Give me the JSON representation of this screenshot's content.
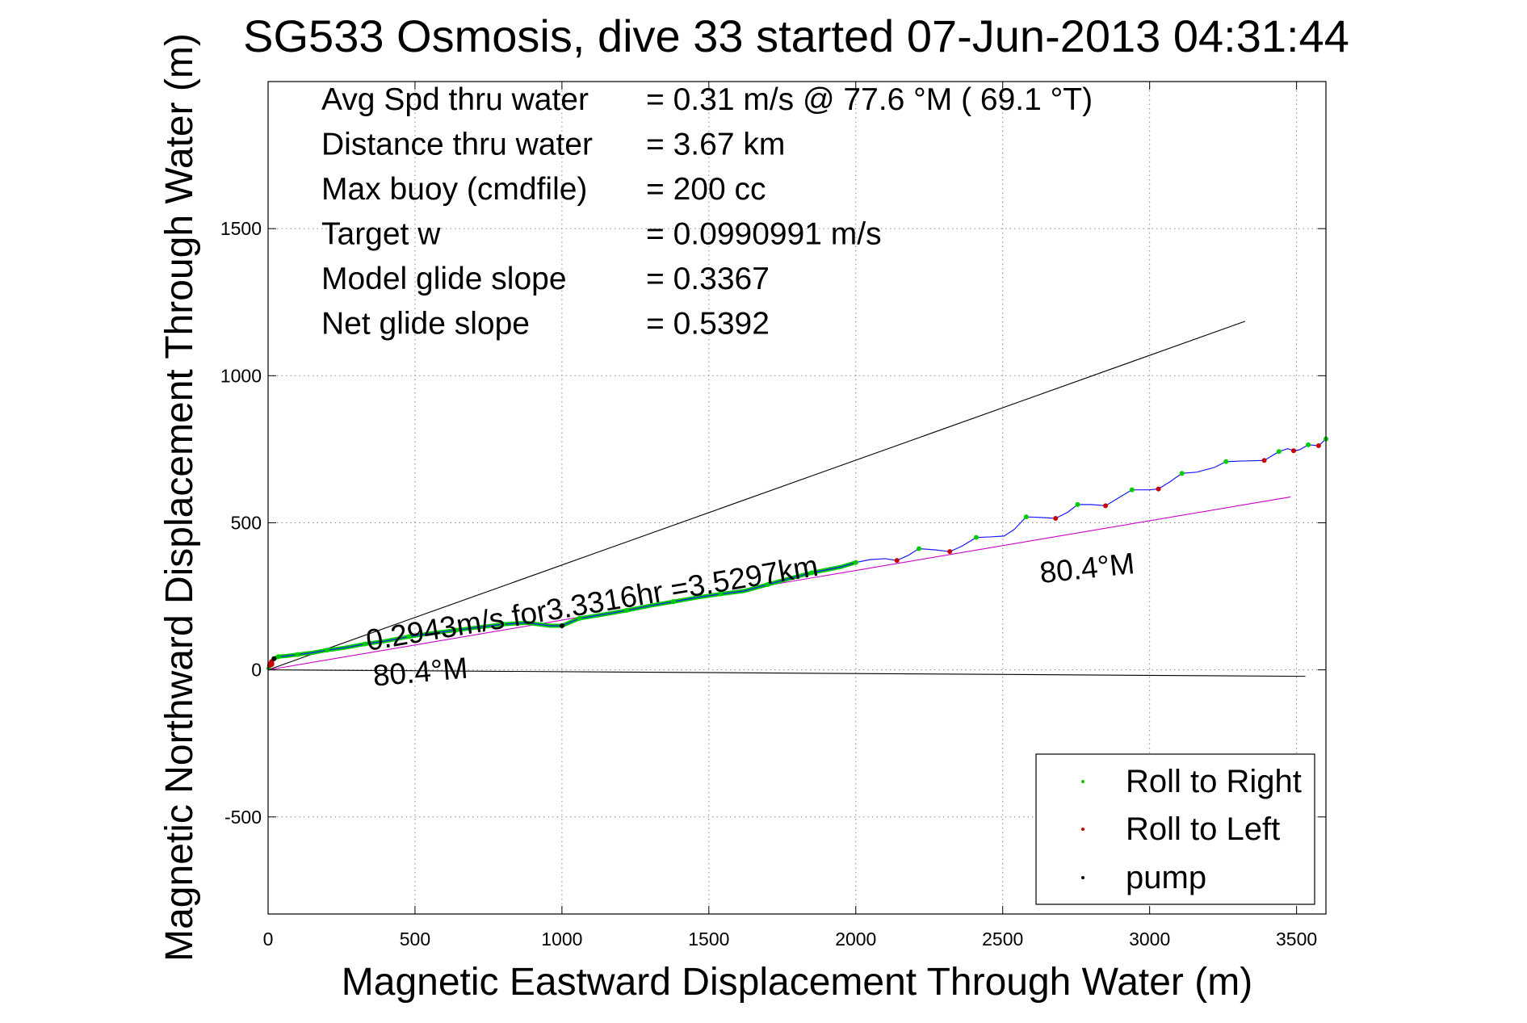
{
  "chart_data": {
    "type": "line",
    "title": "SG533 Osmosis, dive 33 started 07-Jun-2013 04:31:44",
    "xlabel": "Magnetic Eastward Displacement Through Water (m)",
    "ylabel": "Magnetic Northward Displacement Through Water (m)",
    "xlim": [
      0,
      3600
    ],
    "ylim": [
      -830,
      2000
    ],
    "xticks": [
      0,
      500,
      1000,
      1500,
      2000,
      2500,
      3000,
      3500
    ],
    "xtick_labels": [
      "0",
      "500",
      "1000",
      "1500",
      "2000",
      "2500",
      "3000",
      "3500"
    ],
    "yticks": [
      -500,
      0,
      500,
      1000,
      1500
    ],
    "ytick_labels": [
      "-500",
      "0",
      "500",
      "1000",
      "1500"
    ],
    "grid": true,
    "legend_position": "bottom-right",
    "info": [
      {
        "label": "Avg Spd thru water",
        "value": "=  0.31 m/s @  77.6 °M ( 69.1 °T)"
      },
      {
        "label": "Distance thru water",
        "value": "=  3.67 km"
      },
      {
        "label": "Max buoy (cmdfile)",
        "value": "= 200 cc"
      },
      {
        "label": "Target w",
        "value": "= 0.0990991 m/s"
      },
      {
        "label": "Model glide slope",
        "value": "= 0.3367"
      },
      {
        "label": "Net glide slope",
        "value": "= 0.5392"
      }
    ],
    "annotations": [
      {
        "text": "0.2943m/s for3.3316hr =3.5297km",
        "x": 340,
        "y": 65,
        "rotation_deg": -9.5
      },
      {
        "text": "80.4°M",
        "x": 360,
        "y": -55,
        "rotation_deg": -5
      },
      {
        "text": "80.4°M",
        "x": 2630,
        "y": 295,
        "rotation_deg": -6
      }
    ],
    "reference_lines": [
      {
        "name": "",
        "color": "#000000",
        "x": [
          0,
          3325
        ],
        "y": [
          0,
          1185
        ]
      },
      {
        "name": "",
        "color": "#000000",
        "x": [
          0,
          3530
        ],
        "y": [
          0,
          -22
        ]
      },
      {
        "name": "",
        "color": "#cc00cc",
        "x": [
          0,
          3480
        ],
        "y": [
          0,
          588
        ]
      }
    ],
    "series": [
      {
        "name": "",
        "color": "#1a1aff",
        "x": [
          0,
          5,
          12,
          20,
          35,
          60,
          100,
          150,
          200,
          260,
          330,
          400,
          480,
          560,
          640,
          720,
          800,
          880,
          960,
          1000,
          1060,
          1140,
          1220,
          1300,
          1380,
          1460,
          1540,
          1620,
          1700,
          1780,
          1850,
          1900,
          1950,
          2000,
          2050,
          2100,
          2140,
          2180,
          2215,
          2270,
          2320,
          2360,
          2410,
          2460,
          2505,
          2540,
          2580,
          2630,
          2680,
          2720,
          2755,
          2800,
          2850,
          2900,
          2940,
          3000,
          3030,
          3070,
          3110,
          3160,
          3220,
          3260,
          3320,
          3390,
          3440,
          3470,
          3490,
          3510,
          3540,
          3575,
          3600
        ],
        "y": [
          0,
          15,
          28,
          38,
          45,
          47,
          52,
          58,
          67,
          75,
          88,
          98,
          113,
          125,
          135,
          145,
          155,
          160,
          150,
          150,
          175,
          188,
          202,
          218,
          232,
          246,
          258,
          268,
          290,
          312,
          330,
          340,
          350,
          365,
          375,
          378,
          372,
          390,
          412,
          408,
          402,
          420,
          450,
          452,
          455,
          478,
          520,
          518,
          515,
          535,
          562,
          562,
          558,
          588,
          612,
          612,
          615,
          640,
          668,
          672,
          688,
          708,
          710,
          712,
          742,
          752,
          745,
          748,
          765,
          762,
          785
        ]
      }
    ],
    "markers": {
      "roll_right": {
        "name": "Roll to Right",
        "color": "#00cc00",
        "x": [
          35,
          100,
          200,
          330,
          480,
          640,
          800,
          1060,
          1220,
          1380,
          1540,
          1700,
          1850,
          2000,
          2215,
          2410,
          2580,
          2755,
          2940,
          3110,
          3260,
          3440,
          3540,
          3600
        ],
        "y": [
          45,
          52,
          67,
          88,
          113,
          135,
          155,
          175,
          202,
          232,
          258,
          290,
          330,
          365,
          412,
          450,
          520,
          562,
          612,
          668,
          708,
          742,
          765,
          785
        ]
      },
      "roll_left": {
        "name": "Roll to Left",
        "color": "#cc0000",
        "x": [
          5,
          12,
          2140,
          2320,
          2680,
          2850,
          3030,
          3390,
          3490,
          3575
        ],
        "y": [
          15,
          28,
          372,
          402,
          515,
          558,
          615,
          712,
          745,
          762
        ]
      },
      "pump": {
        "name": "pump",
        "color": "#000000",
        "x": [
          20,
          1000
        ],
        "y": [
          38,
          150
        ]
      }
    },
    "colors": {
      "track_dense": "#00cc00",
      "track": "#1a1aff",
      "grid": "#8a8a8a",
      "axis": "#000000"
    }
  }
}
